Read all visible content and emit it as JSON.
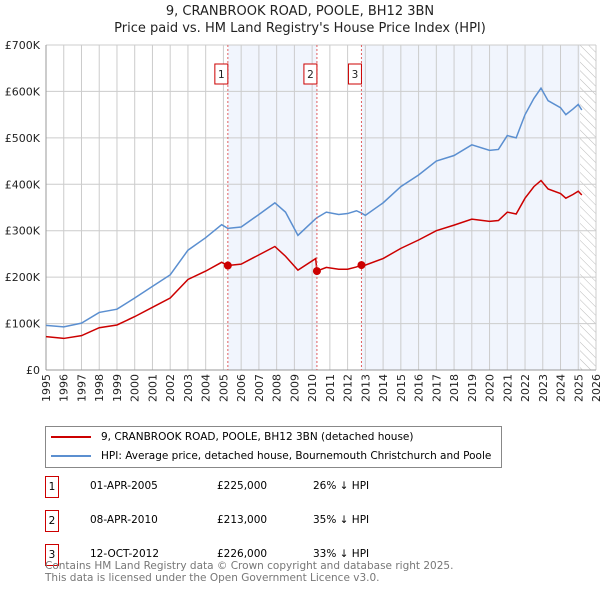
{
  "chart_data": {
    "type": "line",
    "title": "9, CRANBROOK ROAD, POOLE, BH12 3BN",
    "subtitle": "Price paid vs. HM Land Registry's House Price Index (HPI)",
    "xlim": [
      1995,
      2026
    ],
    "ylim": [
      0,
      700000
    ],
    "x_ticks": [
      "1995",
      "1996",
      "1997",
      "1998",
      "1999",
      "2000",
      "2001",
      "2002",
      "2003",
      "2004",
      "2005",
      "2006",
      "2007",
      "2008",
      "2009",
      "2010",
      "2011",
      "2012",
      "2013",
      "2014",
      "2015",
      "2016",
      "2017",
      "2018",
      "2019",
      "2020",
      "2021",
      "2022",
      "2023",
      "2024",
      "2025",
      "2026"
    ],
    "y_ticks": [
      {
        "v": 0,
        "label": "£0"
      },
      {
        "v": 100000,
        "label": "£100K"
      },
      {
        "v": 200000,
        "label": "£200K"
      },
      {
        "v": 300000,
        "label": "£300K"
      },
      {
        "v": 400000,
        "label": "£400K"
      },
      {
        "v": 500000,
        "label": "£500K"
      },
      {
        "v": 600000,
        "label": "£600K"
      },
      {
        "v": 700000,
        "label": "£700K"
      }
    ],
    "grid": true,
    "x": [
      1995,
      1996,
      1997,
      1998,
      1999,
      2000,
      2001,
      2002,
      2003,
      2004,
      2004.9,
      2005.25,
      2006,
      2007,
      2007.9,
      2008.5,
      2009.2,
      2010.2,
      2010.27,
      2010.8,
      2011.5,
      2012,
      2012.5,
      2012.78,
      2013,
      2014,
      2015,
      2016,
      2017,
      2018,
      2019,
      2020,
      2020.5,
      2021,
      2021.5,
      2022,
      2022.5,
      2022.9,
      2023.3,
      2024,
      2024.3,
      2024.7,
      2025,
      2025.2
    ],
    "series": [
      {
        "name": "9, CRANBROOK ROAD, POOLE, BH12 3BN (detached house)",
        "color": "#cc0000",
        "values": [
          72,
          68,
          74,
          91,
          97,
          115,
          135,
          155,
          195,
          213,
          232,
          225,
          228,
          248,
          266,
          245,
          215,
          240,
          213,
          221,
          217,
          217,
          222,
          226,
          226,
          240,
          262,
          280,
          300,
          312,
          325,
          320,
          322,
          340,
          336,
          370,
          395,
          408,
          390,
          380,
          370,
          378,
          385,
          377
        ]
      },
      {
        "name": "HPI: Average price, detached house, Bournemouth Christchurch and Poole",
        "color": "#5b8fd0",
        "values": [
          96,
          93,
          101,
          124,
          131,
          155,
          180,
          205,
          258,
          285,
          313,
          305,
          308,
          335,
          360,
          340,
          290,
          326,
          328,
          340,
          335,
          337,
          343,
          338,
          333,
          360,
          395,
          420,
          450,
          462,
          485,
          473,
          475,
          505,
          500,
          550,
          585,
          607,
          580,
          565,
          550,
          562,
          572,
          560
        ]
      }
    ],
    "value_unit": "thousand GBP",
    "sales": [
      {
        "n": "1",
        "x": 2005.25,
        "price": 225,
        "date": "01-APR-2005",
        "price_label": "£225,000",
        "hpi": "26% ↓ HPI"
      },
      {
        "n": "2",
        "x": 2010.27,
        "price": 213,
        "date": "08-APR-2010",
        "price_label": "£213,000",
        "hpi": "35% ↓ HPI"
      },
      {
        "n": "3",
        "x": 2012.78,
        "price": 226,
        "date": "12-OCT-2012",
        "price_label": "£226,000",
        "hpi": "33% ↓ HPI"
      }
    ],
    "shaded_ranges": [
      [
        2005.25,
        2010.27
      ],
      [
        2012.78,
        2025.1
      ]
    ],
    "hatched_from": 2025.1,
    "legend_placement": "below"
  },
  "footer": {
    "line1": "Contains HM Land Registry data © Crown copyright and database right 2025.",
    "line2": "This data is licensed under the Open Government Licence v3.0."
  }
}
